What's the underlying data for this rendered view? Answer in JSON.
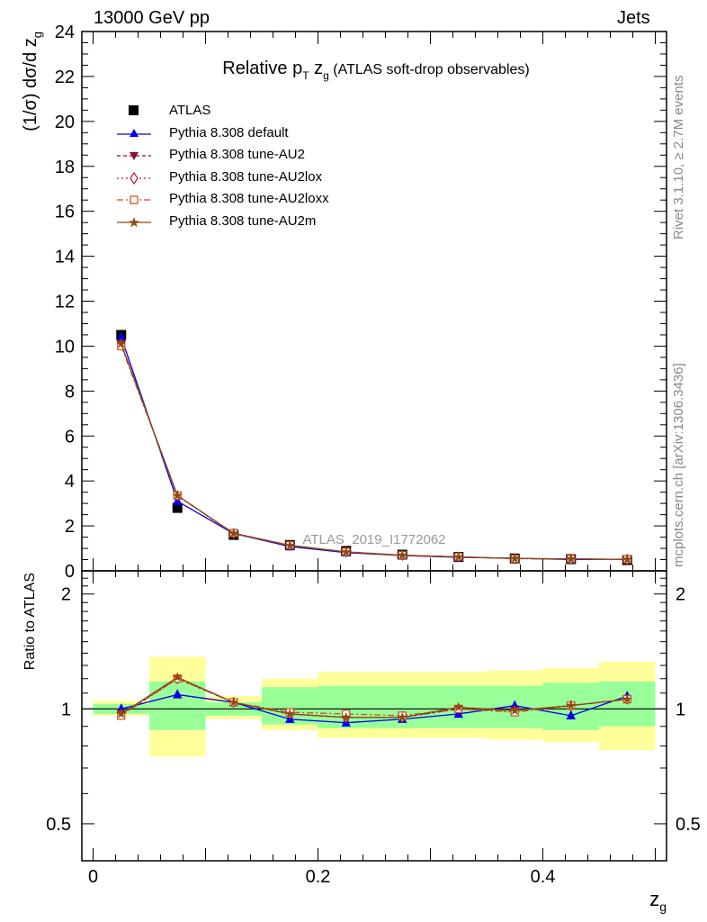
{
  "header": {
    "left": "13000 GeV pp",
    "right": "Jets"
  },
  "side": {
    "rivet": "Rivet 3.1.10, ≥ 2.7M events",
    "mcplots": "mcplots.cern.ch [arXiv:1306.3436]"
  },
  "watermark": "ATLAS_2019_I1772062",
  "chart_data": {
    "type": "line",
    "title": "Relative p_T z_g (ATLAS soft-drop observables)",
    "xlabel": "z_g",
    "ylabel": "(1/σ) dσ/d z_g",
    "ratio_ylabel": "Ratio to ATLAS",
    "xlim": [
      -0.01,
      0.51
    ],
    "ylim": [
      0,
      24
    ],
    "ratio_ylim": [
      0.4,
      2.3
    ],
    "ratio_scale": "log",
    "x_ticks": [
      0,
      0.2,
      0.4
    ],
    "y_ticks": [
      0,
      2,
      4,
      6,
      8,
      10,
      12,
      14,
      16,
      18,
      20,
      22,
      24
    ],
    "ratio_ticks": [
      0.5,
      1,
      2
    ],
    "bin_edges": [
      0,
      0.05,
      0.1,
      0.15,
      0.2,
      0.25,
      0.3,
      0.35,
      0.4,
      0.45,
      0.5
    ],
    "x": [
      0.025,
      0.075,
      0.125,
      0.175,
      0.225,
      0.275,
      0.325,
      0.375,
      0.425,
      0.475
    ],
    "data": {
      "name": "ATLAS",
      "values": [
        10.5,
        2.8,
        1.6,
        1.15,
        0.88,
        0.72,
        0.62,
        0.55,
        0.52,
        0.48
      ],
      "band_stat": [
        [
          0.97,
          1.03
        ],
        [
          0.88,
          1.18
        ],
        [
          0.96,
          1.04
        ],
        [
          0.91,
          1.14
        ],
        [
          0.89,
          1.15
        ],
        [
          0.89,
          1.15
        ],
        [
          0.89,
          1.15
        ],
        [
          0.89,
          1.15
        ],
        [
          0.88,
          1.17
        ],
        [
          0.9,
          1.18
        ]
      ],
      "band_total": [
        [
          0.96,
          1.05
        ],
        [
          0.75,
          1.37
        ],
        [
          0.94,
          1.08
        ],
        [
          0.88,
          1.2
        ],
        [
          0.84,
          1.25
        ],
        [
          0.84,
          1.25
        ],
        [
          0.84,
          1.25
        ],
        [
          0.83,
          1.26
        ],
        [
          0.82,
          1.28
        ],
        [
          0.78,
          1.33
        ]
      ]
    },
    "series": [
      {
        "name": "Pythia 8.308 default",
        "color": "#0000ee",
        "marker": "triangle-up",
        "dash": "",
        "values": [
          10.4,
          3.1,
          1.66,
          1.08,
          0.81,
          0.68,
          0.6,
          0.56,
          0.5,
          0.52
        ],
        "ratio": [
          1.0,
          1.09,
          1.04,
          0.94,
          0.92,
          0.94,
          0.97,
          1.02,
          0.96,
          1.08
        ]
      },
      {
        "name": "Pythia 8.308 tune-AU2",
        "color": "#8b0a3a",
        "marker": "triangle-down",
        "dash": "4,3",
        "values": [
          10.1,
          3.34,
          1.66,
          1.13,
          0.84,
          0.69,
          0.62,
          0.55,
          0.53,
          0.51
        ],
        "ratio": [
          0.97,
          1.2,
          1.04,
          0.97,
          0.95,
          0.95,
          1.0,
          0.99,
          1.02,
          1.06
        ]
      },
      {
        "name": "Pythia 8.308 tune-AU2lox",
        "color": "#b01c3c",
        "marker": "diamond-open",
        "dash": "2,3",
        "values": [
          10.1,
          3.34,
          1.66,
          1.13,
          0.84,
          0.69,
          0.62,
          0.55,
          0.53,
          0.51
        ],
        "ratio": [
          0.97,
          1.2,
          1.04,
          0.97,
          0.95,
          0.95,
          1.0,
          0.99,
          1.02,
          1.06
        ]
      },
      {
        "name": "Pythia 8.308 tune-AU2loxx",
        "color": "#c8501e",
        "marker": "square-open",
        "dash": "7,3,2,3",
        "values": [
          10.0,
          3.35,
          1.68,
          1.14,
          0.85,
          0.7,
          0.63,
          0.54,
          0.53,
          0.51
        ],
        "ratio": [
          0.96,
          1.2,
          1.04,
          0.98,
          0.97,
          0.96,
          1.0,
          0.98,
          1.02,
          1.06
        ]
      },
      {
        "name": "Pythia 8.308 tune-AU2m",
        "color": "#8c4a12",
        "marker": "star",
        "dash": "",
        "values": [
          10.1,
          3.35,
          1.67,
          1.13,
          0.84,
          0.69,
          0.62,
          0.55,
          0.53,
          0.51
        ],
        "ratio": [
          0.97,
          1.21,
          1.04,
          0.97,
          0.95,
          0.95,
          1.01,
          0.99,
          1.02,
          1.06
        ]
      }
    ]
  }
}
